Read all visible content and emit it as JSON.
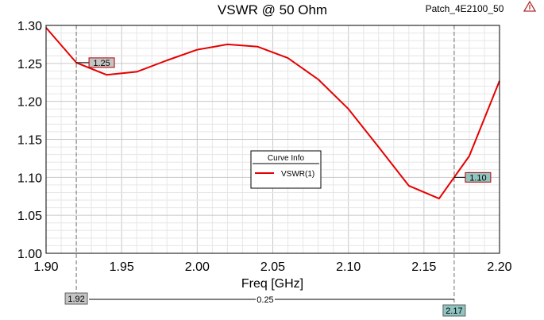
{
  "header": {
    "title": "VSWR @ 50 Ohm",
    "project": "Patch_4E2100_50"
  },
  "legend": {
    "title": "Curve Info",
    "entry": "VSWR(1)"
  },
  "markers": {
    "m1": {
      "x": 1.92,
      "x_label": "1.92",
      "y_label": "1.25"
    },
    "m2": {
      "x": 2.17,
      "x_label": "2.17",
      "y_label": "1.10"
    },
    "delta_label": "0.25"
  },
  "colors": {
    "curve": "#e60000",
    "marker1_tag": "#c4c4c4",
    "marker2_tag": "#8fc4c0",
    "grid_major": "#c8c8c8",
    "grid_minor": "#e6e6e6"
  },
  "chart_data": {
    "type": "line",
    "title": "VSWR @ 50 Ohm",
    "xlabel": "Freq [GHz]",
    "ylabel": "",
    "xlim": [
      1.9,
      2.2
    ],
    "ylim": [
      1.0,
      1.3
    ],
    "grid": true,
    "legend_position": "center",
    "x_ticks": [
      "1.90",
      "1.95",
      "2.00",
      "2.05",
      "2.10",
      "2.15",
      "2.20"
    ],
    "y_ticks": [
      "1.00",
      "1.05",
      "1.10",
      "1.15",
      "1.20",
      "1.25",
      "1.30"
    ],
    "series": [
      {
        "name": "VSWR(1)",
        "x": [
          1.9,
          1.92,
          1.94,
          1.96,
          1.98,
          2.0,
          2.02,
          2.04,
          2.06,
          2.08,
          2.1,
          2.12,
          2.14,
          2.16,
          2.18,
          2.2
        ],
        "values": [
          1.297,
          1.251,
          1.235,
          1.239,
          1.254,
          1.268,
          1.275,
          1.272,
          1.257,
          1.229,
          1.19,
          1.14,
          1.089,
          1.072,
          1.128,
          1.227
        ]
      }
    ]
  }
}
